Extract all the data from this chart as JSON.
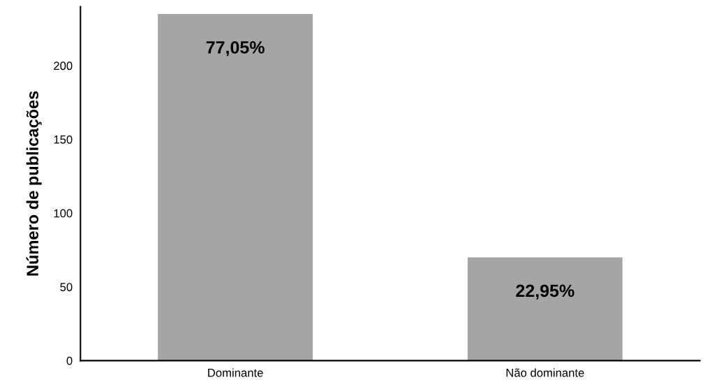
{
  "chart_data": {
    "type": "bar",
    "ylabel": "Número de publicações",
    "categories": [
      "Dominante",
      "Não dominante"
    ],
    "values": [
      235,
      70
    ],
    "annotations": [
      {
        "text": "77,05%",
        "x": "Dominante",
        "y": 235
      },
      {
        "text": "22,95%",
        "x": "Não dominante",
        "y": 70
      }
    ],
    "color": "#a5a5a5",
    "ylim": [
      0,
      240
    ],
    "yticks": [
      0,
      50,
      100,
      150,
      200
    ],
    "grid": false
  }
}
